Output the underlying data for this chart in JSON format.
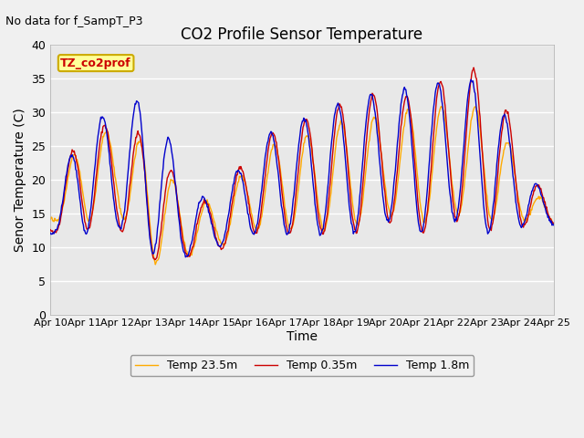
{
  "title": "CO2 Profile Sensor Temperature",
  "ylabel": "Senor Temperature (C)",
  "xlabel": "Time",
  "no_data_text": "No data for f_SampT_P3",
  "annotation_text": "TZ_co2prof",
  "ylim": [
    0,
    40
  ],
  "yticks": [
    0,
    5,
    10,
    15,
    20,
    25,
    30,
    35,
    40
  ],
  "xtick_labels": [
    "Apr 10",
    "Apr 11",
    "Apr 12",
    "Apr 13",
    "Apr 14",
    "Apr 15",
    "Apr 16",
    "Apr 17",
    "Apr 18",
    "Apr 19",
    "Apr 20",
    "Apr 21",
    "Apr 22",
    "Apr 23",
    "Apr 24",
    "Apr 25"
  ],
  "line_colors": [
    "#cc0000",
    "#0000cc",
    "#ffaa00"
  ],
  "legend_labels": [
    "Temp 0.35m",
    "Temp 1.8m",
    "Temp 23.5m"
  ],
  "bg_color": "#e8e8e8",
  "fig_bg_color": "#f0f0f0",
  "title_fontsize": 12,
  "axis_label_fontsize": 10,
  "xtick_fontsize": 8,
  "ytick_fontsize": 9
}
